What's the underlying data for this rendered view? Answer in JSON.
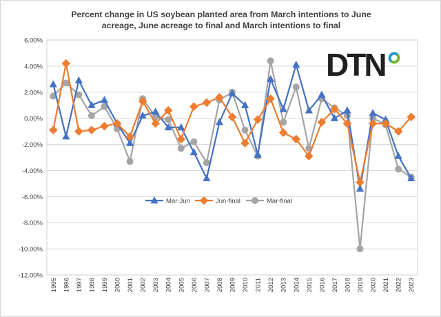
{
  "title": {
    "line1": "Percent change in US soybean planted area from March intentions to June",
    "line2": "acreage, June acreage to final and March intentions to final"
  },
  "logo": {
    "text": "DTN",
    "ring_blue": "#2097d3",
    "ring_green": "#71b62c",
    "text_color": "#221f1f"
  },
  "colors": {
    "grid": "#d9d9d9",
    "plot_border": "#d0d0d0",
    "axis_text": "#404040",
    "title_text": "#404040"
  },
  "chart_data": {
    "type": "line",
    "title": "Percent change in US soybean planted area from March intentions to June acreage, June acreage to final and March intentions to final",
    "x": [
      "1995",
      "1996",
      "1997",
      "1998",
      "1999",
      "2000",
      "2001",
      "2002",
      "2003",
      "2004",
      "2005",
      "2006",
      "2007",
      "2008",
      "2009",
      "2010",
      "2011",
      "2012",
      "2013",
      "2014",
      "2015",
      "2016",
      "2017",
      "2018",
      "2019",
      "2020",
      "2021",
      "2022",
      "2023"
    ],
    "series": [
      {
        "name": "Mar-Jun",
        "color": "#4472C4",
        "marker": "triangle",
        "values": [
          2.6,
          -1.4,
          2.9,
          1.0,
          1.4,
          -0.4,
          -1.9,
          0.2,
          0.5,
          -0.7,
          -0.7,
          -2.6,
          -4.6,
          -0.3,
          1.9,
          1.0,
          -2.8,
          3.0,
          0.7,
          4.1,
          0.6,
          1.8,
          0.0,
          0.6,
          -5.4,
          0.4,
          -0.1,
          -2.9,
          -4.6
        ]
      },
      {
        "name": "Jun-final",
        "color": "#ED7D31",
        "marker": "diamond",
        "values": [
          -0.9,
          4.2,
          -1.0,
          -0.9,
          -0.6,
          -0.4,
          -1.4,
          1.3,
          -0.4,
          0.6,
          -1.6,
          0.9,
          1.2,
          1.6,
          0.1,
          -1.9,
          -0.1,
          1.5,
          -1.1,
          -1.6,
          -2.9,
          -0.3,
          0.7,
          -0.4,
          -4.9,
          -0.4,
          -0.4,
          -1.0,
          0.1
        ]
      },
      {
        "name": "Mar-final",
        "color": "#A5A5A5",
        "marker": "circle",
        "values": [
          1.7,
          2.7,
          1.8,
          0.2,
          0.9,
          -0.8,
          -3.3,
          1.5,
          0.1,
          -0.1,
          -2.3,
          -1.8,
          -3.4,
          1.4,
          2.0,
          -0.9,
          -2.9,
          4.4,
          -0.3,
          2.4,
          -2.3,
          1.5,
          0.8,
          0.2,
          -10.0,
          0.0,
          -0.5,
          -3.9,
          -4.5
        ]
      }
    ],
    "ylim": [
      -12,
      6
    ],
    "ytick_step": 2,
    "ytick_labels": [
      "6.00%",
      "4.00%",
      "2.00%",
      "0.00%",
      "-2.00%",
      "-4.00%",
      "-6.00%",
      "-8.00%",
      "-10.00%",
      "-12.00%"
    ],
    "xlabel": "",
    "ylabel": "",
    "grid": "horizontal",
    "legend_position": "bottom-center-inside",
    "draw_order": [
      "Mar-final",
      "Mar-Jun",
      "Jun-final"
    ]
  }
}
